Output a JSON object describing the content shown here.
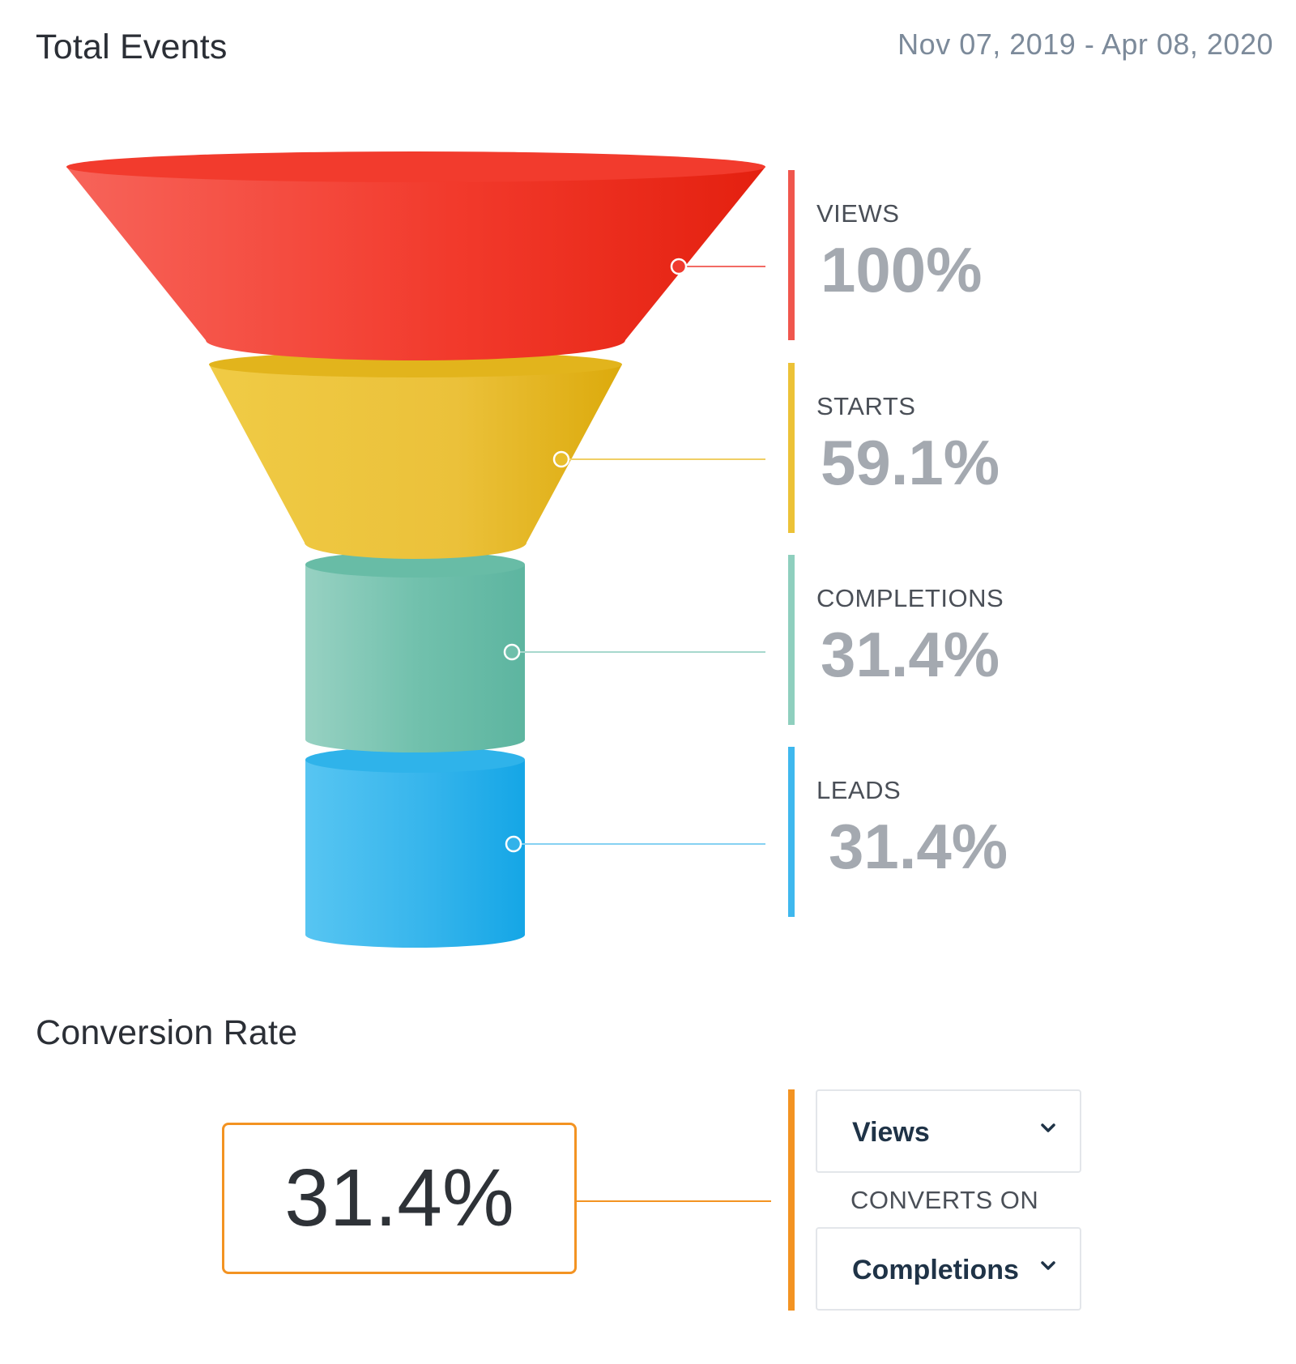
{
  "total_events": {
    "title": "Total Events",
    "date_range": "Nov 07, 2019 - Apr 08, 2020"
  },
  "funnel": {
    "stages": [
      {
        "label": "VIEWS",
        "value": "100%",
        "color": "#f03a2e"
      },
      {
        "label": "STARTS",
        "value": "59.1%",
        "color": "#ecc237"
      },
      {
        "label": "COMPLETIONS",
        "value": "31.4%",
        "color": "#8fcfbe"
      },
      {
        "label": "LEADS",
        "value": "31.4%",
        "color": "#3fb8ee"
      }
    ]
  },
  "conversion": {
    "title": "Conversion Rate",
    "value": "31.4%",
    "accent_color": "#f39322",
    "from_select": {
      "value": "Views",
      "icon": "chevron-down-icon"
    },
    "connector_text": "CONVERTS ON",
    "to_select": {
      "value": "Completions",
      "icon": "chevron-down-icon"
    }
  }
}
